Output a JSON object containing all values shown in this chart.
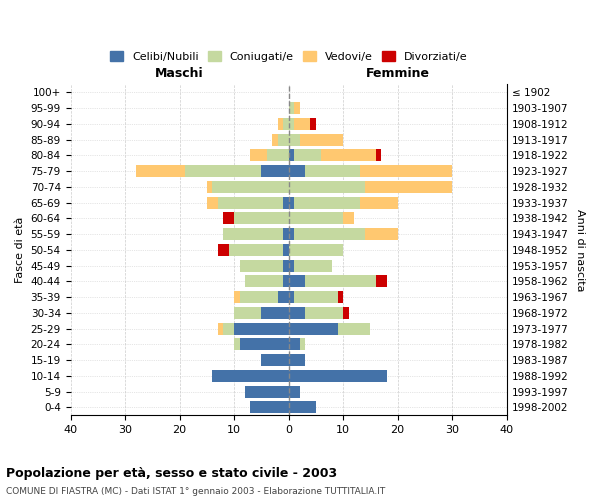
{
  "age_groups": [
    "0-4",
    "5-9",
    "10-14",
    "15-19",
    "20-24",
    "25-29",
    "30-34",
    "35-39",
    "40-44",
    "45-49",
    "50-54",
    "55-59",
    "60-64",
    "65-69",
    "70-74",
    "75-79",
    "80-84",
    "85-89",
    "90-94",
    "95-99",
    "100+"
  ],
  "birth_years": [
    "1998-2002",
    "1993-1997",
    "1988-1992",
    "1983-1987",
    "1978-1982",
    "1973-1977",
    "1968-1972",
    "1963-1967",
    "1958-1962",
    "1953-1957",
    "1948-1952",
    "1943-1947",
    "1938-1942",
    "1933-1937",
    "1928-1932",
    "1923-1927",
    "1918-1922",
    "1913-1917",
    "1908-1912",
    "1903-1907",
    "≤ 1902"
  ],
  "maschi": {
    "celibi": [
      7,
      8,
      14,
      5,
      9,
      10,
      5,
      2,
      1,
      1,
      1,
      1,
      0,
      1,
      0,
      5,
      0,
      0,
      0,
      0,
      0
    ],
    "coniugati": [
      0,
      0,
      0,
      0,
      1,
      2,
      5,
      7,
      7,
      8,
      10,
      11,
      10,
      12,
      14,
      14,
      4,
      2,
      1,
      0,
      0
    ],
    "vedovi": [
      0,
      0,
      0,
      0,
      0,
      1,
      0,
      1,
      0,
      0,
      0,
      0,
      0,
      2,
      1,
      9,
      3,
      1,
      1,
      0,
      0
    ],
    "divorziati": [
      0,
      0,
      0,
      0,
      0,
      0,
      0,
      0,
      0,
      0,
      2,
      0,
      2,
      0,
      0,
      0,
      0,
      0,
      0,
      0,
      0
    ]
  },
  "femmine": {
    "nubili": [
      5,
      2,
      18,
      3,
      2,
      9,
      3,
      1,
      3,
      1,
      0,
      1,
      0,
      1,
      0,
      3,
      1,
      0,
      0,
      0,
      0
    ],
    "coniugate": [
      0,
      0,
      0,
      0,
      1,
      6,
      7,
      8,
      13,
      7,
      10,
      13,
      10,
      12,
      14,
      10,
      5,
      2,
      1,
      1,
      0
    ],
    "vedove": [
      0,
      0,
      0,
      0,
      0,
      0,
      0,
      0,
      0,
      0,
      0,
      6,
      2,
      7,
      16,
      17,
      10,
      8,
      3,
      1,
      0
    ],
    "divorziate": [
      0,
      0,
      0,
      0,
      0,
      0,
      1,
      1,
      2,
      0,
      0,
      0,
      0,
      0,
      0,
      0,
      1,
      0,
      1,
      0,
      0
    ]
  },
  "colors": {
    "celibi_nubili": "#4472a8",
    "coniugati": "#c5d9a0",
    "vedovi": "#ffc870",
    "divorziati": "#cc0000"
  },
  "xlim": 40,
  "title": "Popolazione per età, sesso e stato civile - 2003",
  "subtitle": "COMUNE DI FIASTRA (MC) - Dati ISTAT 1° gennaio 2003 - Elaborazione TUTTITALIA.IT",
  "ylabel_left": "Fasce di età",
  "ylabel_right": "Anni di nascita",
  "xlabel_maschi": "Maschi",
  "xlabel_femmine": "Femmine"
}
